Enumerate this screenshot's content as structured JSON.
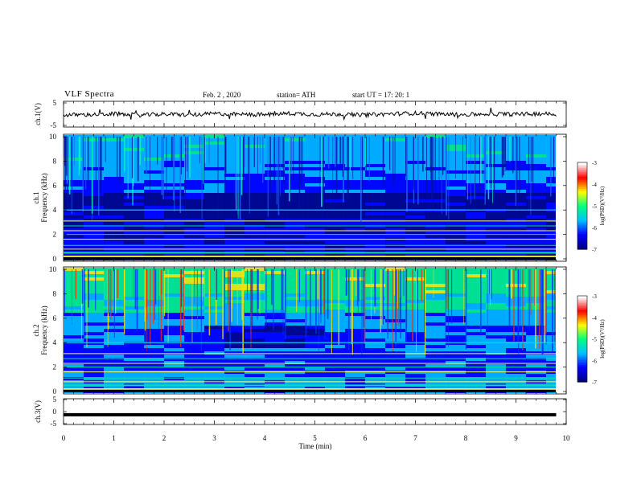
{
  "header": {
    "title": "VLF  Spectra",
    "date": "Feb. 2  , 2020",
    "station": "station= ATH",
    "start": "start  UT  =    17: 20: 1"
  },
  "colors": {
    "colormap": [
      "#000080",
      "#0000ff",
      "#00c0ff",
      "#00ff80",
      "#ffff00",
      "#ff0000",
      "#ffffff"
    ],
    "trace": "#000000",
    "background": "#ffffff"
  },
  "chart_data": [
    {
      "type": "line",
      "panel": "ch1-waveform",
      "ylabel": "ch.1(V)",
      "ylim": [
        -5,
        5
      ],
      "ytick_labels": [
        "5",
        "-5"
      ],
      "x": [
        0,
        0.5,
        1,
        1.5,
        2,
        2.5,
        3,
        3.5,
        4,
        4.5,
        5,
        5.5,
        6,
        6.5,
        7,
        7.5,
        8,
        8.5,
        9,
        9.5,
        9.8
      ],
      "values": [
        -0.3,
        -0.2,
        0.1,
        -0.4,
        0.0,
        -0.3,
        0.2,
        -0.1,
        -0.2,
        0.3,
        -0.1,
        0.0,
        -0.3,
        0.1,
        0.4,
        0.0,
        -0.2,
        0.1,
        -0.1,
        0.2,
        0.0
      ]
    },
    {
      "type": "heatmap",
      "panel": "ch1-spectrogram",
      "ylabel": "ch.1\nFrequency (kHz)",
      "ylim": [
        0,
        10
      ],
      "ytick_labels": [
        "0",
        "2",
        "4",
        "6",
        "8",
        "10"
      ],
      "colorbar": {
        "label": "log(PSD)(V²/Hz)",
        "range": [
          -7,
          -3
        ],
        "ticks": [
          "-3",
          "-4",
          "-5",
          "-6",
          "-7"
        ]
      },
      "x_extent_min": [
        0,
        9.8
      ],
      "dark_band_khz": [
        3.5,
        5.5
      ],
      "quiet_interval_min": [
        2.7,
        4.85
      ]
    },
    {
      "type": "heatmap",
      "panel": "ch2-spectrogram",
      "ylabel": "ch.2\nFrequency (kHz)",
      "ylim": [
        0,
        10
      ],
      "ytick_labels": [
        "0",
        "2",
        "4",
        "6",
        "8",
        "10"
      ],
      "colorbar": {
        "label": "log(PSD)(V²/Hz)",
        "range": [
          -7,
          -3
        ],
        "ticks": [
          "-3",
          "-4",
          "-5",
          "-6",
          "-7"
        ]
      },
      "x_extent_min": [
        0,
        9.8
      ],
      "quiet_interval_min": [
        2.7,
        4.85
      ]
    },
    {
      "type": "line",
      "panel": "ch3-waveform",
      "ylabel": "ch.3(V)",
      "ylim": [
        -5,
        5
      ],
      "ytick_labels": [
        "5",
        "0",
        "-5"
      ],
      "x": [
        0,
        9.8
      ],
      "values": [
        -1.2,
        -1.2
      ]
    }
  ],
  "time_axis": {
    "label": "Time  (min)",
    "range": [
      0,
      10
    ],
    "ticks": [
      "0",
      "1",
      "2",
      "3",
      "4",
      "5",
      "6",
      "7",
      "8",
      "9",
      "10"
    ]
  }
}
